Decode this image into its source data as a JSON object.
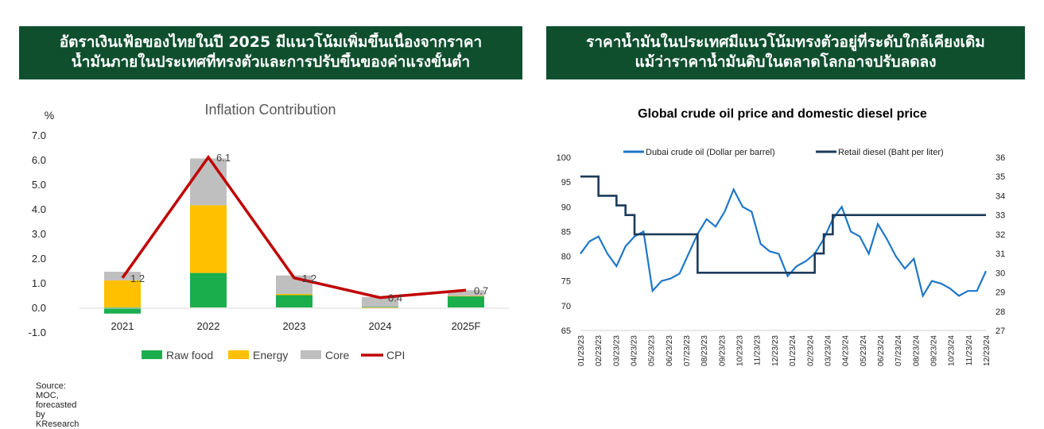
{
  "left_panel": {
    "header_lines": [
      "อัตราเงินเฟ้อของไทยในปี 2025 มีแนวโน้มเพิ่มขึ้นเนื่องจากราคา",
      "น้ำมันภายในประเทศที่ทรงตัวและการปรับขึ้นของค่าแรงขั้นต่ำ"
    ],
    "source": "Source: MOC, forecasted by KResearch"
  },
  "right_panel": {
    "header_lines": [
      "ราคาน้ำมันในประเทศมีแนวโน้มทรงตัวอยู่ที่ระดับใกล้เคียงเดิม",
      "แม้ว่าราคาน้ำมันดิบในตลาดโลกอาจปรับลดลง"
    ]
  },
  "colors": {
    "banner": "#0f4f2e",
    "raw_food": "#1aae4d",
    "energy": "#ffc000",
    "core": "#bfbfbf",
    "cpi": "#c00000",
    "dubai": "#1f77c8",
    "diesel": "#1c3b5a"
  },
  "chart_data": [
    {
      "type": "bar",
      "stacked": true,
      "title": "Inflation Contribution",
      "ylabel": "%",
      "categories": [
        "2021",
        "2022",
        "2023",
        "2024",
        "2025F"
      ],
      "ylim": [
        -1.0,
        7.0
      ],
      "yticks": [
        "7.0",
        "6.0",
        "5.0",
        "4.0",
        "3.0",
        "2.0",
        "1.0",
        "0.0",
        "-1.0"
      ],
      "series": [
        {
          "name": "Raw food",
          "values": [
            -0.25,
            1.4,
            0.5,
            0.02,
            0.45
          ]
        },
        {
          "name": "Energy",
          "values": [
            1.1,
            2.75,
            0.05,
            -0.05,
            0.02
          ]
        },
        {
          "name": "Core",
          "values": [
            0.35,
            1.9,
            0.75,
            0.4,
            0.23
          ]
        }
      ],
      "line": {
        "name": "CPI",
        "values": [
          1.2,
          6.1,
          1.2,
          0.4,
          0.7
        ]
      },
      "data_labels": [
        "1.2",
        "6.1",
        "1.2",
        "0.4",
        "0.7"
      ],
      "legend": "bottom",
      "grid": false
    },
    {
      "type": "line",
      "title": "Global crude oil price and domestic diesel price",
      "legend": "top",
      "grid": false,
      "x_labels": [
        "01/23/23",
        "02/23/23",
        "03/23/23",
        "04/23/23",
        "05/23/23",
        "06/23/23",
        "07/23/23",
        "08/23/23",
        "09/23/23",
        "10/23/23",
        "11/23/23",
        "12/23/23",
        "01/23/24",
        "02/23/24",
        "03/23/24",
        "04/23/24",
        "05/23/24",
        "06/23/24",
        "07/23/24",
        "08/23/24",
        "09/23/24",
        "10/23/24",
        "11/23/24",
        "12/23/24"
      ],
      "ylim_left": [
        65,
        100
      ],
      "yticks_left": [
        "100",
        "95",
        "90",
        "85",
        "80",
        "75",
        "70",
        "65"
      ],
      "ylim_right": [
        27,
        36
      ],
      "yticks_right": [
        "36",
        "35",
        "34",
        "33",
        "32",
        "31",
        "30",
        "29",
        "28",
        "27"
      ],
      "series": [
        {
          "name": "Dubai crude oil (Dollar per barrel)",
          "axis": "left",
          "values": [
            80.5,
            83,
            84,
            80.5,
            78,
            82,
            84,
            85,
            73,
            75,
            75.5,
            76.5,
            80.5,
            84.5,
            87.5,
            86,
            89,
            93.5,
            90,
            89,
            82.5,
            81,
            80.5,
            76,
            78,
            79,
            80.5,
            83.5,
            87.5,
            90,
            85,
            84,
            80.5,
            86.5,
            83.5,
            80,
            77.5,
            79.5,
            72,
            75,
            74.5,
            73.5,
            72,
            73,
            73,
            77
          ]
        },
        {
          "name": "Retail diesel (Baht per liter)",
          "axis": "right",
          "values": [
            35,
            35,
            34,
            34,
            33.5,
            33,
            32,
            32,
            32,
            32,
            32,
            32,
            32,
            30,
            30,
            30,
            30,
            30,
            30,
            30,
            30,
            30,
            30,
            30,
            30,
            30,
            31,
            32,
            33,
            33,
            33,
            33,
            33,
            33,
            33,
            33,
            33,
            33,
            33,
            33,
            33,
            33,
            33,
            33,
            33,
            33
          ]
        }
      ]
    }
  ]
}
